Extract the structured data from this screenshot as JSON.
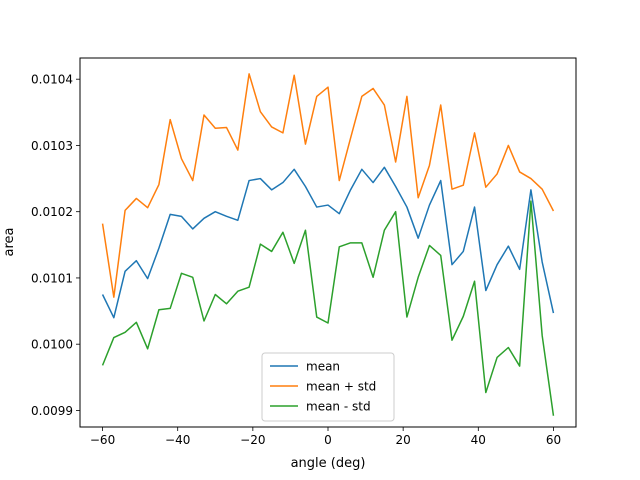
{
  "chart_data": {
    "type": "line",
    "title": "",
    "xlabel": "angle (deg)",
    "ylabel": "area",
    "xlim": [
      -66,
      66
    ],
    "ylim": [
      0.009875,
      0.010432
    ],
    "xticks": [
      -60,
      -40,
      -20,
      0,
      20,
      40,
      60
    ],
    "xtick_labels": [
      "−60",
      "−40",
      "−20",
      "0",
      "20",
      "40",
      "60"
    ],
    "yticks": [
      0.0099,
      0.01,
      0.0101,
      0.0102,
      0.0103,
      0.0104
    ],
    "ytick_labels": [
      "0.0099",
      "0.0100",
      "0.0101",
      "0.0102",
      "0.0103",
      "0.0104"
    ],
    "grid": false,
    "legend_position": "lower center",
    "x": [
      -60,
      -57,
      -54,
      -51,
      -48,
      -45,
      -42,
      -39,
      -36,
      -33,
      -30,
      -27,
      -24,
      -21,
      -18,
      -15,
      -12,
      -9,
      -6,
      -3,
      0,
      3,
      6,
      9,
      12,
      15,
      18,
      21,
      24,
      27,
      30,
      33,
      36,
      39,
      42,
      45,
      48,
      51,
      54,
      57,
      60
    ],
    "series": [
      {
        "name": "mean",
        "color": "#1f77b4",
        "values": [
          0.010075,
          0.01004,
          0.01011,
          0.010126,
          0.010099,
          0.010145,
          0.010196,
          0.010193,
          0.010174,
          0.01019,
          0.0102,
          0.010193,
          0.010187,
          0.010247,
          0.01025,
          0.010233,
          0.010244,
          0.010264,
          0.010238,
          0.010207,
          0.01021,
          0.010197,
          0.010233,
          0.010264,
          0.010244,
          0.010267,
          0.010238,
          0.010207,
          0.01016,
          0.01021,
          0.010247,
          0.01012,
          0.01014,
          0.010207,
          0.010081,
          0.01012,
          0.010148,
          0.010113,
          0.010233,
          0.010124,
          0.010047
        ]
      },
      {
        "name": "mean + std",
        "color": "#ff7f0e",
        "values": [
          0.010182,
          0.010071,
          0.010202,
          0.01022,
          0.010206,
          0.010241,
          0.010339,
          0.01028,
          0.010247,
          0.010346,
          0.010326,
          0.010327,
          0.010293,
          0.010408,
          0.010351,
          0.010328,
          0.010319,
          0.010406,
          0.010302,
          0.010374,
          0.010388,
          0.010247,
          0.010311,
          0.010374,
          0.010386,
          0.010361,
          0.010275,
          0.010374,
          0.010221,
          0.01027,
          0.010361,
          0.010234,
          0.01024,
          0.010319,
          0.010237,
          0.010257,
          0.0103,
          0.01026,
          0.01025,
          0.010234,
          0.010201
        ]
      },
      {
        "name": "mean - std",
        "color": "#2ca02c",
        "values": [
          0.009968,
          0.01001,
          0.010018,
          0.010033,
          0.009993,
          0.010052,
          0.010054,
          0.010107,
          0.010101,
          0.010035,
          0.010075,
          0.010061,
          0.01008,
          0.010086,
          0.010151,
          0.01014,
          0.010169,
          0.010122,
          0.010172,
          0.010041,
          0.010032,
          0.010147,
          0.010153,
          0.010153,
          0.010101,
          0.010172,
          0.0102,
          0.010041,
          0.010101,
          0.010149,
          0.010134,
          0.010006,
          0.010042,
          0.010095,
          0.009927,
          0.00998,
          0.009995,
          0.009967,
          0.010216,
          0.010013,
          0.009892
        ]
      }
    ]
  }
}
